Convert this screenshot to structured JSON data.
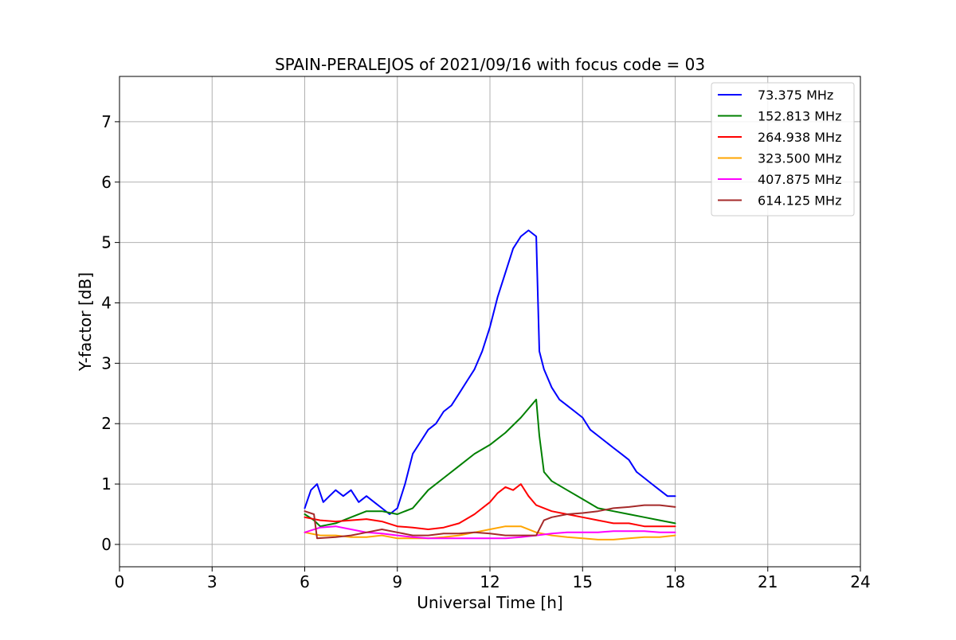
{
  "chart_data": {
    "type": "line",
    "title": "SPAIN-PERALEJOS of 2021/09/16 with focus code = 03",
    "xlabel": "Universal Time [h]",
    "ylabel": "Y-factor [dB]",
    "xlim": [
      0,
      24
    ],
    "ylim": [
      -0.37,
      7.75
    ],
    "xticks": [
      0,
      3,
      6,
      9,
      12,
      15,
      18,
      21,
      24
    ],
    "yticks": [
      0,
      1,
      2,
      3,
      4,
      5,
      6,
      7
    ],
    "grid": true,
    "legend_position": "top-right",
    "series": [
      {
        "name": " 73.375 MHz",
        "color": "#0000ff",
        "x": [
          6.0,
          6.2,
          6.4,
          6.6,
          6.8,
          7.0,
          7.25,
          7.5,
          7.75,
          8.0,
          8.25,
          8.5,
          8.75,
          9.0,
          9.25,
          9.5,
          9.75,
          10.0,
          10.25,
          10.5,
          10.75,
          11.0,
          11.25,
          11.5,
          11.75,
          12.0,
          12.25,
          12.5,
          12.75,
          13.0,
          13.25,
          13.5,
          13.6,
          13.75,
          14.0,
          14.25,
          14.5,
          14.75,
          15.0,
          15.25,
          15.5,
          15.75,
          16.0,
          16.25,
          16.5,
          16.75,
          17.0,
          17.25,
          17.5,
          17.75,
          18.0
        ],
        "values": [
          0.6,
          0.9,
          1.0,
          0.7,
          0.8,
          0.9,
          0.8,
          0.9,
          0.7,
          0.8,
          0.7,
          0.6,
          0.5,
          0.6,
          1.0,
          1.5,
          1.7,
          1.9,
          2.0,
          2.2,
          2.3,
          2.5,
          2.7,
          2.9,
          3.2,
          3.6,
          4.1,
          4.5,
          4.9,
          5.1,
          5.2,
          5.1,
          3.2,
          2.9,
          2.6,
          2.4,
          2.3,
          2.2,
          2.1,
          1.9,
          1.8,
          1.7,
          1.6,
          1.5,
          1.4,
          1.2,
          1.1,
          1.0,
          0.9,
          0.8,
          0.8
        ]
      },
      {
        "name": "152.813 MHz",
        "color": "#008000",
        "x": [
          6.0,
          6.3,
          6.5,
          7.0,
          7.5,
          8.0,
          8.5,
          9.0,
          9.5,
          10.0,
          10.5,
          11.0,
          11.5,
          12.0,
          12.5,
          13.0,
          13.5,
          13.6,
          13.75,
          14.0,
          14.5,
          15.0,
          15.5,
          16.0,
          16.5,
          17.0,
          17.5,
          18.0
        ],
        "values": [
          0.5,
          0.4,
          0.3,
          0.35,
          0.45,
          0.55,
          0.55,
          0.5,
          0.6,
          0.9,
          1.1,
          1.3,
          1.5,
          1.65,
          1.85,
          2.1,
          2.4,
          1.8,
          1.2,
          1.05,
          0.9,
          0.75,
          0.6,
          0.55,
          0.5,
          0.45,
          0.4,
          0.35
        ]
      },
      {
        "name": "264.938 MHz",
        "color": "#ff0000",
        "x": [
          6.0,
          6.5,
          7.0,
          7.5,
          8.0,
          8.5,
          9.0,
          9.5,
          10.0,
          10.5,
          11.0,
          11.5,
          12.0,
          12.25,
          12.5,
          12.75,
          13.0,
          13.25,
          13.5,
          14.0,
          14.5,
          15.0,
          15.5,
          16.0,
          16.5,
          17.0,
          17.5,
          18.0
        ],
        "values": [
          0.45,
          0.4,
          0.38,
          0.4,
          0.42,
          0.38,
          0.3,
          0.28,
          0.25,
          0.28,
          0.35,
          0.5,
          0.7,
          0.85,
          0.95,
          0.9,
          1.0,
          0.8,
          0.65,
          0.55,
          0.5,
          0.45,
          0.4,
          0.35,
          0.35,
          0.3,
          0.3,
          0.3
        ]
      },
      {
        "name": "323.500 MHz",
        "color": "#ffa500",
        "x": [
          6.0,
          6.5,
          7.0,
          7.5,
          8.0,
          8.5,
          9.0,
          9.5,
          10.0,
          10.5,
          11.0,
          11.5,
          12.0,
          12.5,
          13.0,
          13.5,
          14.0,
          14.5,
          15.0,
          15.5,
          16.0,
          16.5,
          17.0,
          17.5,
          18.0
        ],
        "values": [
          0.2,
          0.15,
          0.15,
          0.12,
          0.12,
          0.15,
          0.1,
          0.1,
          0.1,
          0.12,
          0.15,
          0.2,
          0.25,
          0.3,
          0.3,
          0.2,
          0.15,
          0.12,
          0.1,
          0.08,
          0.08,
          0.1,
          0.12,
          0.12,
          0.15
        ]
      },
      {
        "name": "407.875 MHz",
        "color": "#ff00ff",
        "x": [
          6.0,
          6.5,
          7.0,
          7.5,
          8.0,
          8.5,
          9.0,
          9.5,
          10.0,
          10.5,
          11.0,
          11.5,
          12.0,
          12.5,
          13.0,
          13.5,
          14.0,
          14.5,
          15.0,
          15.5,
          16.0,
          16.5,
          17.0,
          17.5,
          18.0
        ],
        "values": [
          0.2,
          0.28,
          0.3,
          0.25,
          0.2,
          0.18,
          0.15,
          0.12,
          0.1,
          0.1,
          0.1,
          0.1,
          0.1,
          0.1,
          0.12,
          0.15,
          0.18,
          0.2,
          0.2,
          0.2,
          0.22,
          0.22,
          0.22,
          0.2,
          0.2
        ]
      },
      {
        "name": "614.125 MHz",
        "color": "#a52a2a",
        "x": [
          6.0,
          6.3,
          6.4,
          7.0,
          7.5,
          8.0,
          8.5,
          9.0,
          9.5,
          10.0,
          10.5,
          11.0,
          11.5,
          12.0,
          12.5,
          13.0,
          13.5,
          13.75,
          14.0,
          14.5,
          15.0,
          15.5,
          16.0,
          16.5,
          17.0,
          17.5,
          18.0
        ],
        "values": [
          0.55,
          0.5,
          0.1,
          0.12,
          0.15,
          0.2,
          0.25,
          0.2,
          0.15,
          0.15,
          0.18,
          0.18,
          0.2,
          0.18,
          0.15,
          0.15,
          0.15,
          0.4,
          0.45,
          0.5,
          0.52,
          0.55,
          0.6,
          0.62,
          0.65,
          0.65,
          0.62
        ]
      }
    ]
  }
}
